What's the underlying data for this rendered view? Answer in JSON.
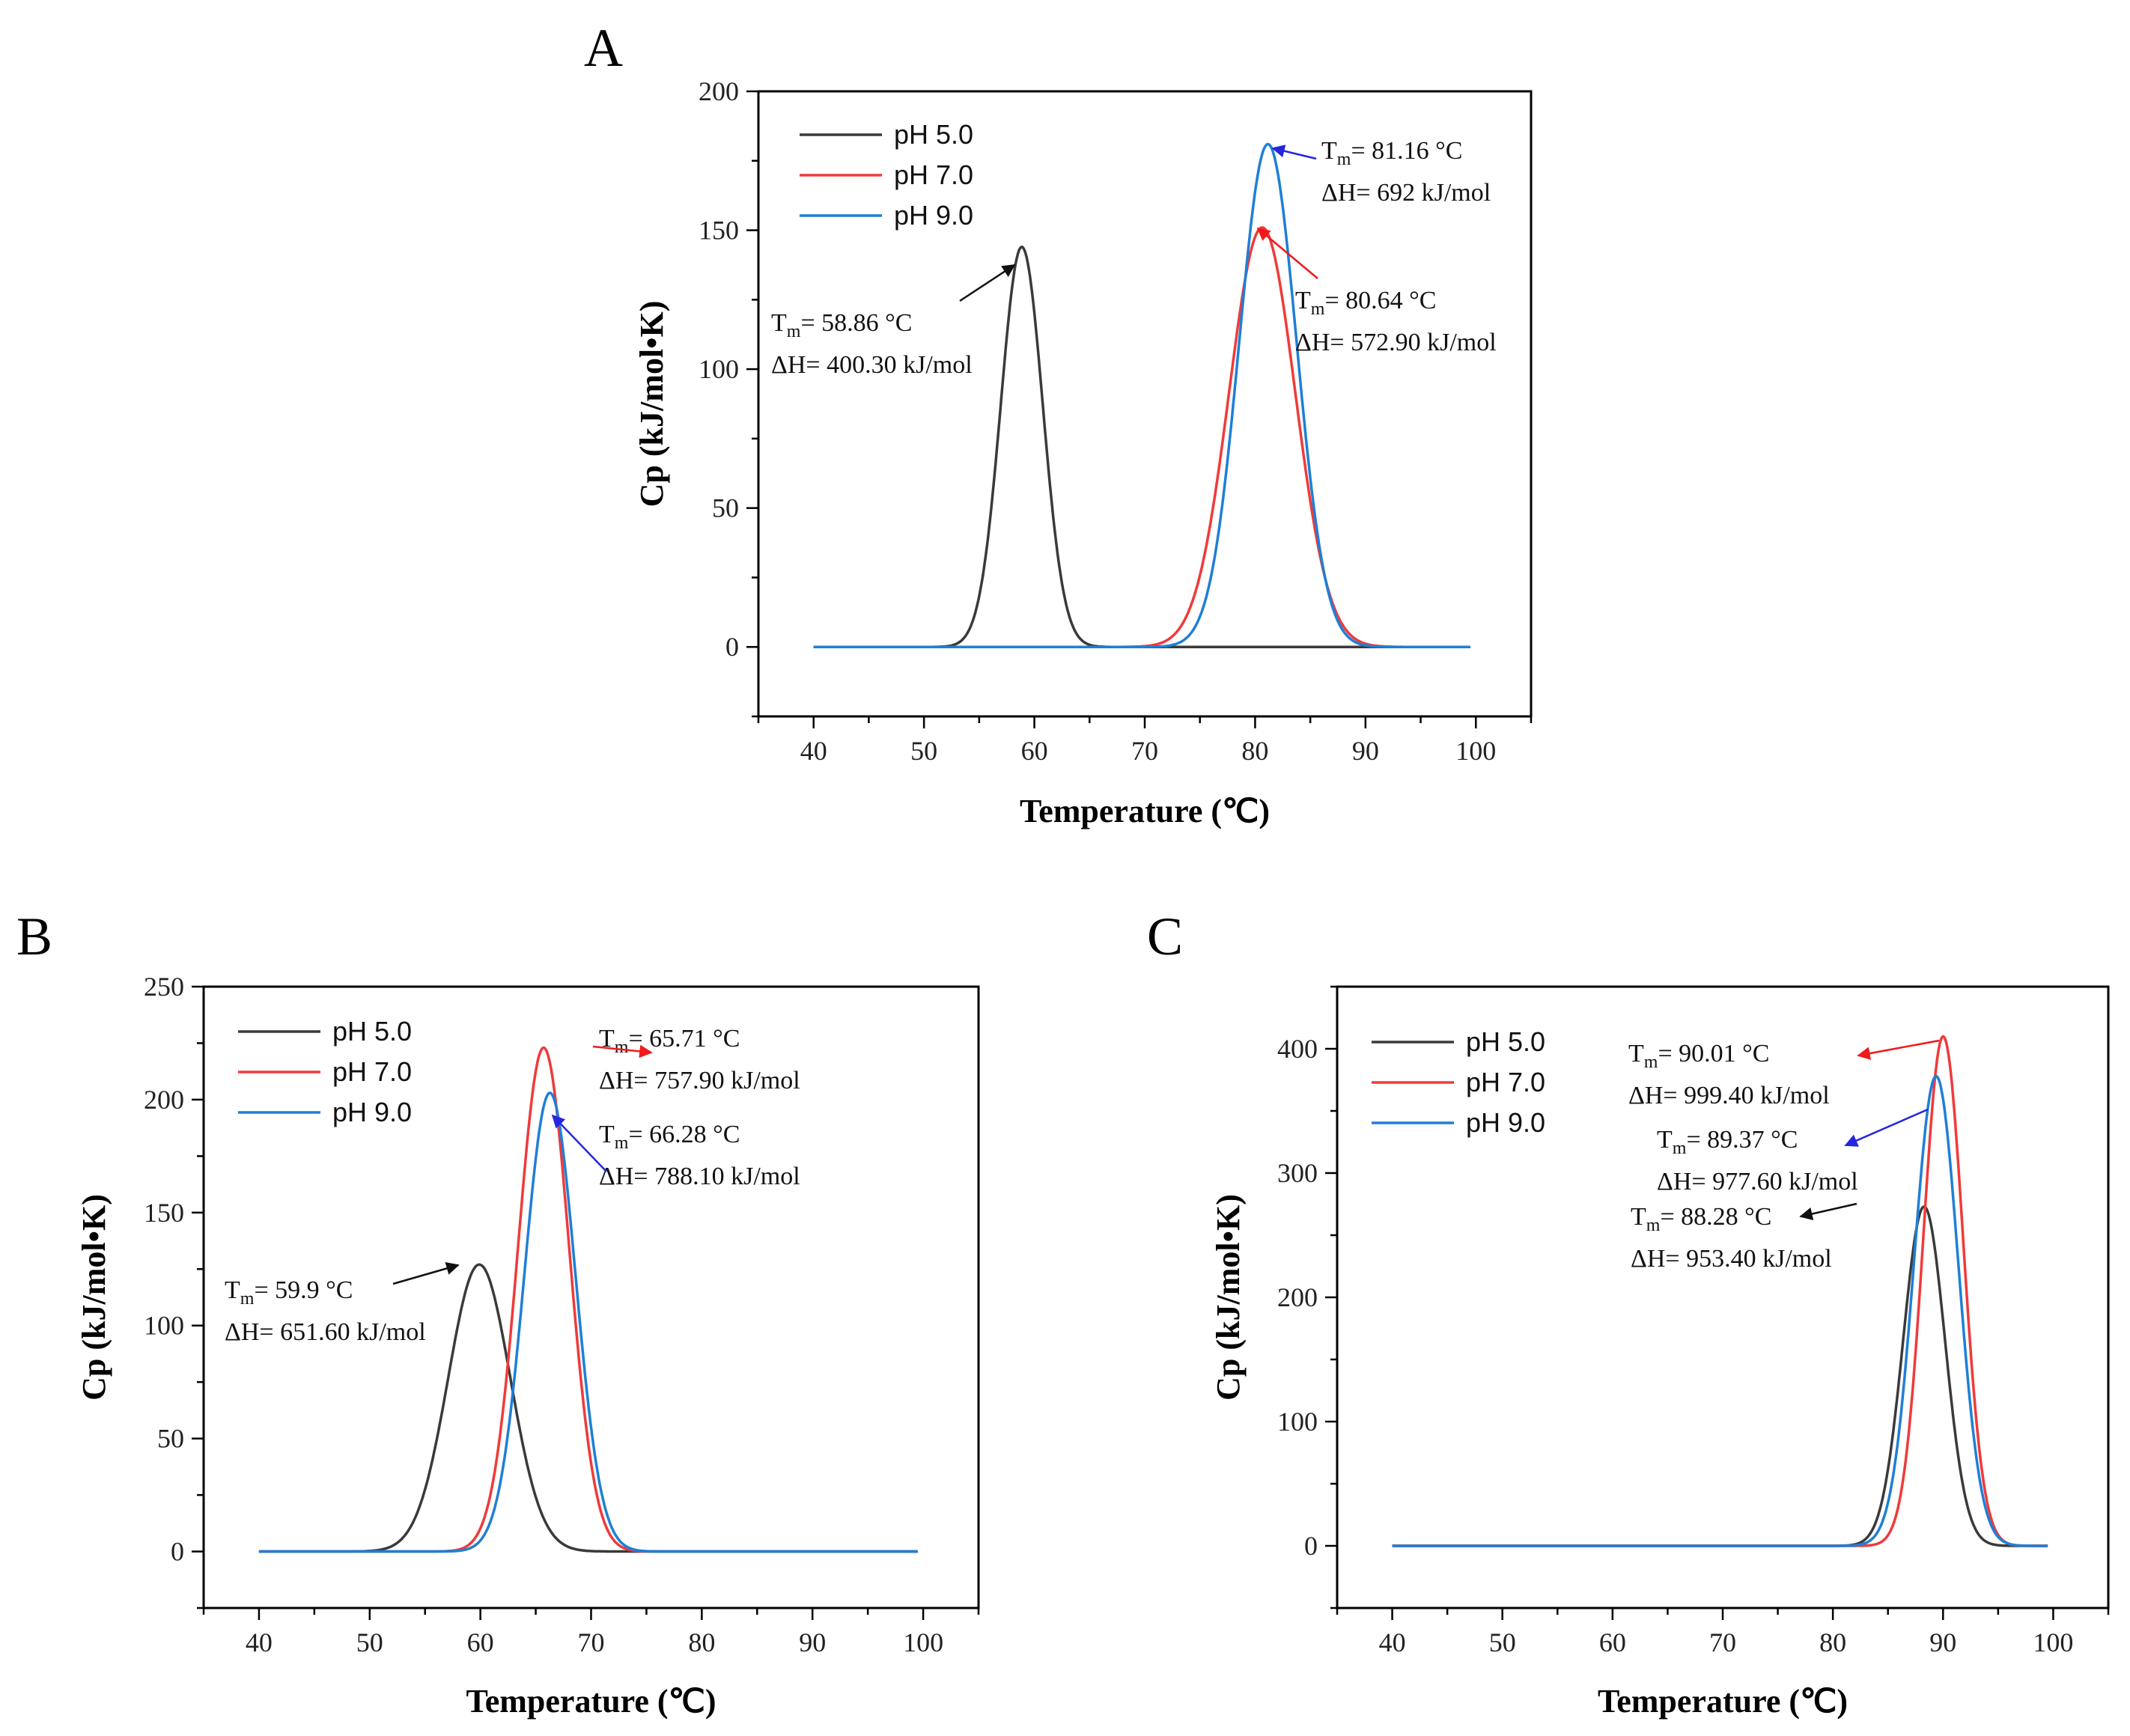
{
  "colors": {
    "pH 5.0": "#3a3a3a",
    "pH 7.0": "#f03a3a",
    "pH 9.0": "#1f7fd6",
    "arrow_blue": "#2626e0"
  },
  "chart_data": [
    {
      "panel": "A",
      "type": "line",
      "xlabel": "Temperature (℃)",
      "ylabel": "Cp (kJ/mol•K)",
      "xlim": [
        35,
        105
      ],
      "ylim": [
        -25,
        200
      ],
      "xticks": [
        "40",
        "50",
        "60",
        "70",
        "80",
        "90",
        "100"
      ],
      "yticks": [
        "0",
        "50",
        "100",
        "150",
        "200"
      ],
      "legend": [
        "pH 5.0",
        "pH 7.0",
        "pH 9.0"
      ],
      "series": [
        {
          "name": "pH 5.0",
          "peak_x": 58.86,
          "peak_y": 144,
          "width": 1.9
        },
        {
          "name": "pH 7.0",
          "peak_x": 80.64,
          "peak_y": 151,
          "width": 3.0
        },
        {
          "name": "pH 9.0",
          "peak_x": 81.16,
          "peak_y": 181,
          "width": 2.6
        }
      ],
      "x_range": [
        40,
        99.5
      ],
      "annotations": [
        {
          "tm": "58.86 °C",
          "dh": "400.30 kJ/mol",
          "series": "pH 5.0"
        },
        {
          "tm": "81.16 °C",
          "dh": "692 kJ/mol",
          "series": "pH 9.0"
        },
        {
          "tm": "80.64 °C",
          "dh": "572.90 kJ/mol",
          "series": "pH 7.0"
        }
      ]
    },
    {
      "panel": "B",
      "type": "line",
      "xlabel": "Temperature (℃)",
      "ylabel": "Cp (kJ/mol•K)",
      "xlim": [
        35,
        105
      ],
      "ylim": [
        -25,
        250
      ],
      "xticks": [
        "40",
        "50",
        "60",
        "70",
        "80",
        "90",
        "100"
      ],
      "yticks": [
        "0",
        "50",
        "100",
        "150",
        "200",
        "250"
      ],
      "legend": [
        "pH 5.0",
        "pH 7.0",
        "pH 9.0"
      ],
      "series": [
        {
          "name": "pH 5.0",
          "peak_x": 59.9,
          "peak_y": 127,
          "width": 2.8
        },
        {
          "name": "pH 7.0",
          "peak_x": 65.71,
          "peak_y": 223,
          "width": 2.3
        },
        {
          "name": "pH 9.0",
          "peak_x": 66.28,
          "peak_y": 203,
          "width": 2.3
        }
      ],
      "x_range": [
        40,
        99.5
      ],
      "annotations": [
        {
          "tm": "65.71 °C",
          "dh": "757.90 kJ/mol",
          "series": "pH 7.0"
        },
        {
          "tm": "66.28 °C",
          "dh": "788.10 kJ/mol",
          "series": "pH 9.0"
        },
        {
          "tm": "59.9 °C",
          "dh": "651.60 kJ/mol",
          "series": "pH 5.0"
        }
      ]
    },
    {
      "panel": "C",
      "type": "line",
      "xlabel": "Temperature (℃)",
      "ylabel": "Cp (kJ/mol•K)",
      "xlim": [
        35,
        105
      ],
      "ylim": [
        -50,
        450
      ],
      "xticks": [
        "40",
        "50",
        "60",
        "70",
        "80",
        "90",
        "100"
      ],
      "yticks": [
        "0",
        "100",
        "200",
        "300",
        "400"
      ],
      "legend": [
        "pH 5.0",
        "pH 7.0",
        "pH 9.0"
      ],
      "series": [
        {
          "name": "pH 5.0",
          "peak_x": 88.28,
          "peak_y": 273,
          "width": 1.9
        },
        {
          "name": "pH 7.0",
          "peak_x": 90.01,
          "peak_y": 410,
          "width": 1.8
        },
        {
          "name": "pH 9.0",
          "peak_x": 89.37,
          "peak_y": 378,
          "width": 2.0
        }
      ],
      "x_range": [
        40,
        99.5
      ],
      "annotations": [
        {
          "tm": "90.01 °C",
          "dh": "999.40 kJ/mol",
          "series": "pH 7.0"
        },
        {
          "tm": "89.37 °C",
          "dh": "977.60 kJ/mol",
          "series": "pH 9.0"
        },
        {
          "tm": "88.28 °C",
          "dh": "953.40 kJ/mol",
          "series": "pH 5.0"
        }
      ]
    }
  ],
  "labels": {
    "tm_prefix": "T",
    "tm_sub": "m",
    "tm_eq": "= ",
    "dh_prefix": "ΔH= "
  }
}
